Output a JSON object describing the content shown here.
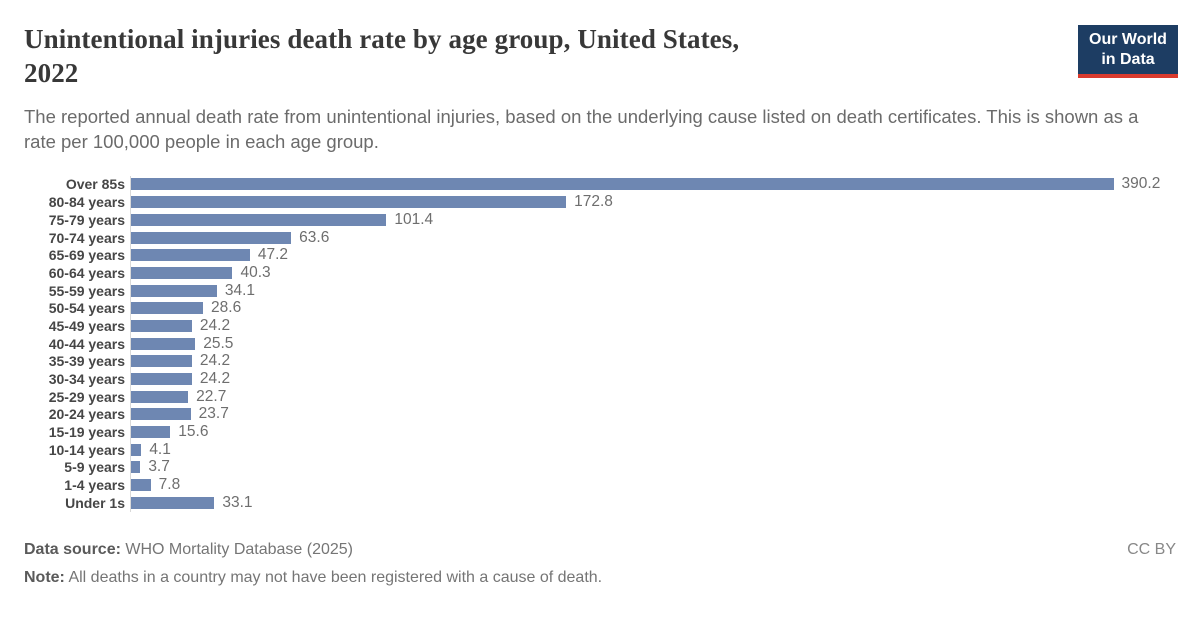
{
  "header": {
    "title_line1": "Unintentional injuries death rate by age group, United States,",
    "title_line2": "2022",
    "subtitle": "The reported annual death rate from unintentional injuries, based on the underlying cause listed on death certificates. This is shown as a rate per 100,000 people in each age group.",
    "logo": {
      "line1": "Our World",
      "line2": "in Data",
      "bg_color": "#1d3d63",
      "accent_color": "#d93a2d"
    }
  },
  "chart_data": {
    "type": "bar",
    "orientation": "horizontal",
    "title": "Unintentional injuries death rate by age group, United States, 2022",
    "categories": [
      "Over 85s",
      "80-84 years",
      "75-79 years",
      "70-74 years",
      "65-69 years",
      "60-64 years",
      "55-59 years",
      "50-54 years",
      "45-49 years",
      "40-44 years",
      "35-39 years",
      "30-34 years",
      "25-29 years",
      "20-24 years",
      "15-19 years",
      "10-14 years",
      "5-9 years",
      "1-4 years",
      "Under 1s"
    ],
    "values": [
      390.2,
      172.8,
      101.4,
      63.6,
      47.2,
      40.3,
      34.1,
      28.6,
      24.2,
      25.5,
      24.2,
      24.2,
      22.7,
      23.7,
      15.6,
      4.1,
      3.7,
      7.8,
      33.1
    ],
    "xlabel": "",
    "ylabel": "",
    "xlim": [
      0,
      415
    ],
    "grid": false,
    "legend": false,
    "bar_color": "#6e87b2",
    "axis_line_color": "#d9d9d9"
  },
  "footer": {
    "data_source_label": "Data source:",
    "data_source_value": " WHO Mortality Database (2025)",
    "license": "CC BY",
    "note_label": "Note:",
    "note_value": " All deaths in a country may not have been registered with a cause of death."
  }
}
